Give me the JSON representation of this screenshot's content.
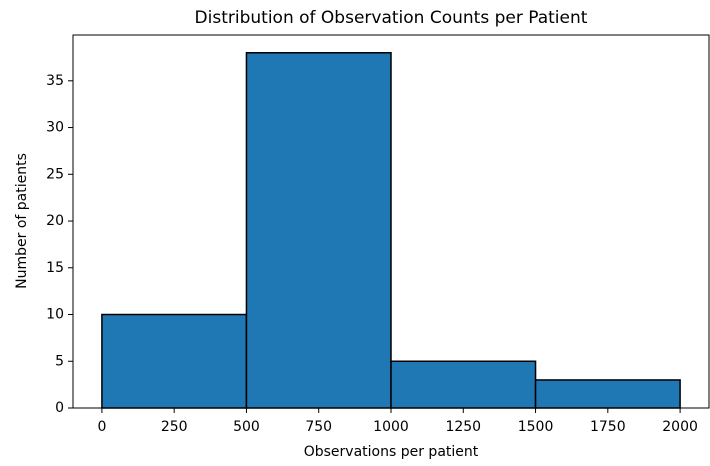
{
  "chart_data": {
    "type": "histogram",
    "title": "Distribution of Observation Counts per Patient",
    "x_label": "Observations per patient",
    "y_label": "Number of patients",
    "bins": [
      0,
      500,
      1000,
      1500,
      2000
    ],
    "values": [
      10,
      38,
      5,
      3
    ],
    "color": "#1f77b4",
    "xlim": [
      -100,
      2100
    ],
    "ylim": [
      0,
      39.9
    ],
    "xticks": [
      0,
      250,
      500,
      750,
      1000,
      1250,
      1500,
      1750,
      2000
    ],
    "yticks": [
      0,
      5,
      10,
      15,
      20,
      25,
      30,
      35
    ]
  }
}
